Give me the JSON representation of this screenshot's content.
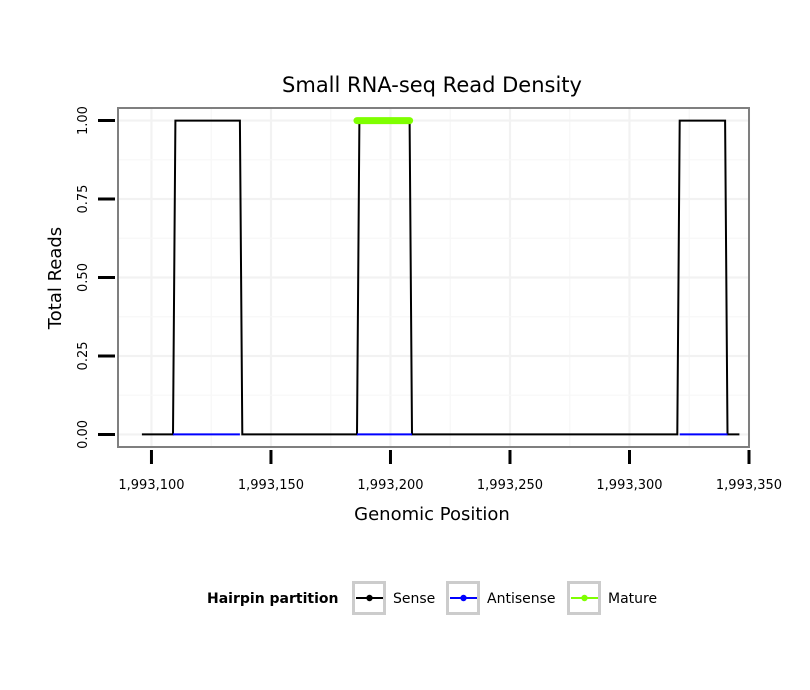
{
  "chart_data": {
    "type": "line",
    "title": "Small RNA-seq Read Density",
    "xlabel": "Genomic Position",
    "ylabel": "Total Reads",
    "xlim": [
      1993086,
      1993350
    ],
    "ylim": [
      -0.04,
      1.04
    ],
    "x_ticks": [
      1993100,
      1993150,
      1993200,
      1993250,
      1993300,
      1993350
    ],
    "x_tick_labels": [
      "1,993,100",
      "1,993,150",
      "1,993,200",
      "1,993,250",
      "1,993,300",
      "1,993,350"
    ],
    "y_ticks": [
      0,
      0.25,
      0.5,
      0.75,
      1.0
    ],
    "y_tick_labels": [
      "0.00",
      "0.25",
      "0.50",
      "0.75",
      "1.00"
    ],
    "grid": true,
    "series": [
      {
        "name": "Sense",
        "color": "#000000",
        "x": [
          1993096,
          1993109,
          1993110,
          1993137,
          1993138,
          1993186,
          1993187,
          1993208,
          1993209,
          1993320,
          1993321,
          1993340,
          1993341,
          1993346
        ],
        "values": [
          0,
          0,
          1,
          1,
          0,
          0,
          1,
          1,
          0,
          0,
          1,
          1,
          0,
          0
        ]
      },
      {
        "name": "Antisense",
        "color": "#0000ff",
        "segments": [
          {
            "x": [
              1993109,
              1993137
            ],
            "values": [
              0,
              0
            ]
          },
          {
            "x": [
              1993186,
              1993209
            ],
            "values": [
              0,
              0
            ]
          },
          {
            "x": [
              1993321,
              1993341
            ],
            "values": [
              0,
              0
            ]
          }
        ]
      },
      {
        "name": "Mature",
        "color": "#7fff00",
        "segments": [
          {
            "x": [
              1993186,
              1993208
            ],
            "values": [
              1,
              1
            ]
          }
        ]
      }
    ],
    "legend": {
      "title": "Hairpin partition",
      "position": "bottom",
      "entries": [
        {
          "label": "Sense",
          "color": "#000000"
        },
        {
          "label": "Antisense",
          "color": "#0000ff"
        },
        {
          "label": "Mature",
          "color": "#7fff00"
        }
      ]
    }
  }
}
